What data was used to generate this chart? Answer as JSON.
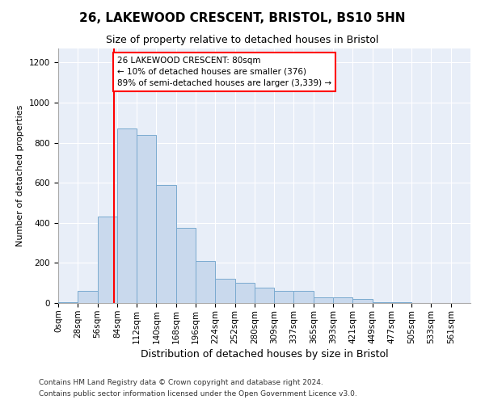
{
  "title1": "26, LAKEWOOD CRESCENT, BRISTOL, BS10 5HN",
  "title2": "Size of property relative to detached houses in Bristol",
  "xlabel": "Distribution of detached houses by size in Bristol",
  "ylabel": "Number of detached properties",
  "footnote1": "Contains HM Land Registry data © Crown copyright and database right 2024.",
  "footnote2": "Contains public sector information licensed under the Open Government Licence v3.0.",
  "bin_labels": [
    "0sqm",
    "28sqm",
    "56sqm",
    "84sqm",
    "112sqm",
    "140sqm",
    "168sqm",
    "196sqm",
    "224sqm",
    "252sqm",
    "280sqm",
    "309sqm",
    "337sqm",
    "365sqm",
    "393sqm",
    "421sqm",
    "449sqm",
    "477sqm",
    "505sqm",
    "533sqm",
    "561sqm"
  ],
  "bar_values": [
    3,
    60,
    430,
    870,
    840,
    590,
    375,
    210,
    120,
    100,
    75,
    60,
    60,
    28,
    28,
    22,
    5,
    5,
    2,
    2,
    2
  ],
  "bar_color": "#c9d9ed",
  "bar_edge_color": "#7aaacf",
  "property_line_x": 80,
  "property_line_label": "26 LAKEWOOD CRESCENT: 80sqm",
  "annotation_line1": "← 10% of detached houses are smaller (376)",
  "annotation_line2": "89% of semi-detached houses are larger (3,339) →",
  "annotation_box_color": "white",
  "annotation_box_edge_color": "red",
  "vline_color": "red",
  "ylim": [
    0,
    1270
  ],
  "yticks": [
    0,
    200,
    400,
    600,
    800,
    1000,
    1200
  ],
  "bin_width": 28,
  "background_color": "#e8eef8",
  "grid_color": "#ffffff",
  "title1_fontsize": 11,
  "title2_fontsize": 9,
  "ylabel_fontsize": 8,
  "xlabel_fontsize": 9,
  "tick_fontsize": 7.5,
  "footnote_fontsize": 6.5
}
